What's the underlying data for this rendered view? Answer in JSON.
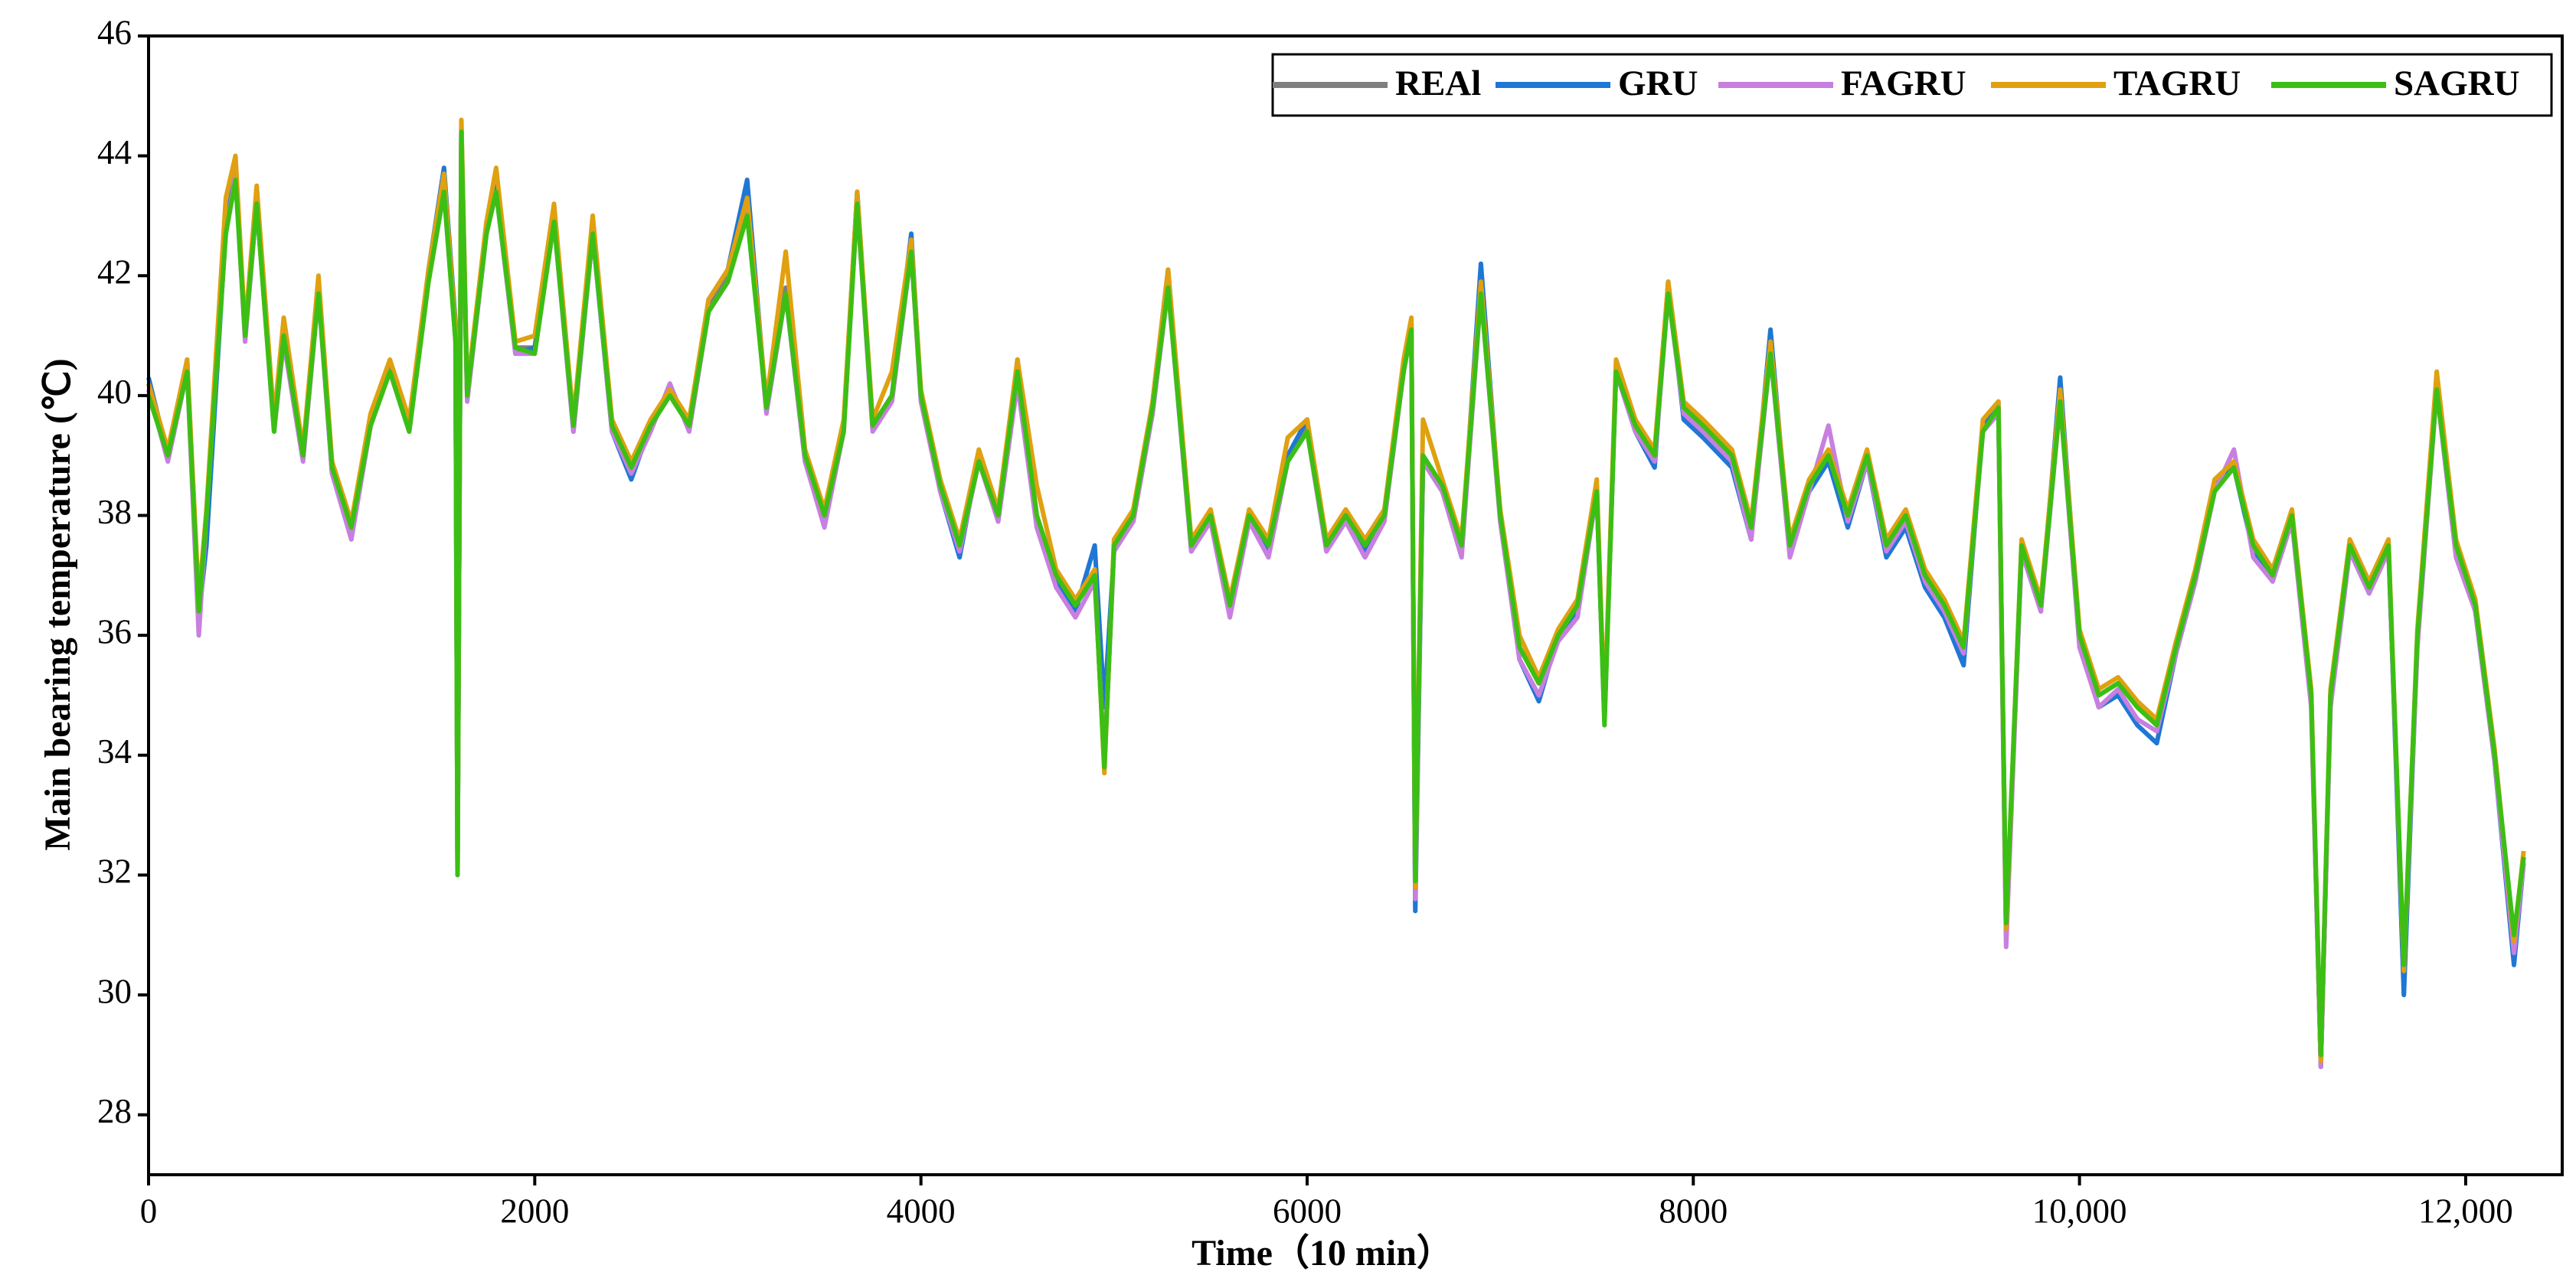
{
  "chart_data": {
    "type": "line",
    "xlabel": "Time（10 min）",
    "ylabel": "Main bearing temperature (℃)",
    "xlim": [
      0,
      12500
    ],
    "ylim": [
      27,
      46
    ],
    "xticks": [
      0,
      2000,
      4000,
      6000,
      8000,
      {
        "value": 10000,
        "label": "10,000"
      },
      {
        "value": 12000,
        "label": "12,000"
      }
    ],
    "yticks": [
      28,
      30,
      32,
      34,
      36,
      38,
      40,
      42,
      44,
      46
    ],
    "legend": "upper right",
    "x": [
      0,
      100,
      200,
      260,
      300,
      400,
      450,
      500,
      560,
      650,
      700,
      800,
      880,
      950,
      1050,
      1150,
      1250,
      1350,
      1450,
      1530,
      1590,
      1600,
      1620,
      1650,
      1750,
      1800,
      1900,
      2000,
      2100,
      2200,
      2300,
      2400,
      2500,
      2600,
      2700,
      2800,
      2900,
      3000,
      3100,
      3200,
      3300,
      3400,
      3500,
      3600,
      3670,
      3750,
      3850,
      3950,
      4000,
      4100,
      4200,
      4300,
      4400,
      4500,
      4600,
      4700,
      4800,
      4900,
      4950,
      5000,
      5100,
      5200,
      5280,
      5400,
      5500,
      5600,
      5700,
      5800,
      5900,
      6000,
      6100,
      6200,
      6300,
      6400,
      6500,
      6540,
      6560,
      6600,
      6700,
      6800,
      6900,
      7000,
      7100,
      7200,
      7300,
      7400,
      7500,
      7540,
      7600,
      7700,
      7800,
      7870,
      7950,
      8050,
      8200,
      8300,
      8400,
      8500,
      8600,
      8700,
      8800,
      8900,
      9000,
      9100,
      9200,
      9300,
      9400,
      9500,
      9580,
      9620,
      9700,
      9800,
      9900,
      10000,
      10100,
      10200,
      10300,
      10400,
      10500,
      10600,
      10700,
      10800,
      10900,
      11000,
      11100,
      11200,
      11250,
      11300,
      11400,
      11500,
      11600,
      11680,
      11750,
      11850,
      11950,
      12050,
      12150,
      12250,
      12300
    ],
    "series": [
      {
        "name": "REAl",
        "color": "#7f7f7f",
        "values": [
          40.2,
          39,
          40.5,
          36.5,
          38,
          42.8,
          43.8,
          41,
          43.3,
          39.5,
          41,
          39,
          41.8,
          38.8,
          37.8,
          39.6,
          40.5,
          39.5,
          42,
          43.5,
          41,
          32,
          44.5,
          40,
          42.8,
          43.5,
          40.8,
          40.8,
          43,
          39.5,
          42.8,
          39.5,
          38.8,
          39.5,
          40,
          39.5,
          41.5,
          42,
          43.2,
          39.8,
          41.8,
          39,
          38,
          39.5,
          43.3,
          39.5,
          40,
          42.5,
          40,
          38.5,
          37.5,
          39,
          38,
          40.5,
          38,
          37,
          36.5,
          37,
          33.8,
          37.5,
          38,
          39.8,
          42,
          37.5,
          38,
          36.5,
          38,
          37.5,
          39,
          39.5,
          37.5,
          38,
          37.5,
          38,
          40.5,
          41.2,
          31.7,
          39,
          38.5,
          37.5,
          41.8,
          38,
          35.8,
          35.2,
          36,
          36.5,
          38.5,
          34.6,
          40.5,
          39.5,
          39,
          41.8,
          39.8,
          39.5,
          39,
          37.8,
          40.8,
          37.5,
          38.5,
          39,
          38,
          39,
          37.5,
          38,
          37,
          36.5,
          35.8,
          39.5,
          39.8,
          31,
          37.5,
          36.5,
          40,
          36,
          35,
          35.2,
          34.8,
          34.5,
          35.8,
          37,
          38.5,
          38.8,
          37.5,
          37,
          38,
          35,
          28.8,
          35,
          37.5,
          36.8,
          37.5,
          30.3,
          36,
          40.2,
          37.5,
          36.5,
          34,
          30.8,
          32.3
        ]
      },
      {
        "name": "GRU",
        "color": "#1f77d4",
        "values": [
          40.3,
          39,
          40.6,
          36.3,
          37.5,
          42.8,
          43.7,
          41,
          43.2,
          39.5,
          41,
          39,
          41.8,
          38.7,
          37.7,
          39.6,
          40.4,
          39.5,
          42.1,
          43.8,
          41.2,
          32.2,
          44.4,
          40,
          42.9,
          43.5,
          40.7,
          40.8,
          43,
          39.4,
          42.7,
          39.4,
          38.6,
          39.5,
          40.1,
          39.5,
          41.6,
          42.1,
          43.6,
          39.8,
          41.7,
          38.9,
          37.9,
          39.5,
          43.4,
          39.5,
          40,
          42.7,
          40,
          38.4,
          37.3,
          39,
          37.9,
          40.6,
          37.9,
          36.9,
          36.4,
          37.5,
          34.8,
          37.4,
          38,
          39.9,
          42.1,
          37.4,
          38,
          36.4,
          38,
          37.4,
          39,
          39.6,
          37.4,
          38,
          37.4,
          38,
          40.4,
          41.2,
          31.4,
          38.9,
          38.4,
          37.4,
          42.2,
          38,
          35.6,
          34.9,
          36,
          36.4,
          38.4,
          34.6,
          40.4,
          39.4,
          38.8,
          41.9,
          39.6,
          39.3,
          38.8,
          37.6,
          41.1,
          37.4,
          38.4,
          38.9,
          37.8,
          38.9,
          37.3,
          37.8,
          36.8,
          36.3,
          35.5,
          39.5,
          39.9,
          31,
          37.4,
          36.4,
          40.3,
          35.9,
          34.8,
          35,
          34.5,
          34.2,
          35.7,
          36.9,
          38.5,
          38.8,
          37.4,
          36.9,
          38,
          34.9,
          28.8,
          34.9,
          37.5,
          36.7,
          37.5,
          30,
          35.9,
          40.3,
          37.4,
          36.4,
          33.9,
          30.5,
          32.2
        ]
      },
      {
        "name": "FAGRU",
        "color": "#c77fe0",
        "values": [
          40.1,
          38.9,
          40.4,
          36,
          38,
          42.7,
          43.7,
          40.9,
          43.2,
          39.4,
          40.9,
          38.9,
          41.7,
          38.7,
          37.6,
          39.5,
          40.4,
          39.4,
          41.9,
          43.4,
          40.9,
          32.1,
          44.4,
          39.9,
          42.7,
          43.4,
          40.7,
          40.7,
          42.9,
          39.4,
          42.7,
          39.4,
          38.7,
          39.4,
          40.2,
          39.4,
          41.4,
          41.9,
          43.3,
          39.7,
          41.7,
          38.9,
          37.8,
          39.4,
          43.2,
          39.4,
          39.9,
          42.4,
          39.9,
          38.4,
          37.4,
          38.9,
          37.9,
          40.2,
          37.8,
          36.8,
          36.3,
          36.9,
          33.9,
          37.4,
          37.9,
          39.7,
          41.8,
          37.4,
          37.9,
          36.3,
          37.9,
          37.3,
          38.9,
          39.4,
          37.4,
          37.9,
          37.3,
          37.9,
          40.4,
          41.1,
          31.6,
          38.9,
          38.4,
          37.3,
          41.7,
          37.9,
          35.6,
          35,
          35.9,
          36.3,
          38.4,
          34.6,
          40.4,
          39.4,
          38.9,
          41.7,
          39.7,
          39.4,
          38.9,
          37.6,
          40.7,
          37.3,
          38.4,
          39.5,
          37.9,
          38.9,
          37.4,
          37.9,
          36.9,
          36.4,
          35.7,
          39.4,
          39.7,
          30.8,
          37.4,
          36.4,
          39.9,
          35.8,
          34.8,
          35.1,
          34.6,
          34.4,
          35.7,
          36.9,
          38.4,
          39.1,
          37.3,
          36.9,
          37.9,
          34.8,
          28.8,
          34.8,
          37.4,
          36.7,
          37.4,
          30.4,
          35.8,
          40.1,
          37.3,
          36.4,
          33.9,
          30.7,
          32.2
        ]
      },
      {
        "name": "TAGRU",
        "color": "#e0a010",
        "values": [
          40.2,
          39.1,
          40.6,
          36.6,
          38.1,
          43.3,
          44,
          41.1,
          43.5,
          39.6,
          41.3,
          39.1,
          42,
          38.9,
          37.9,
          39.7,
          40.6,
          39.6,
          42.1,
          43.7,
          41.1,
          32.1,
          44.6,
          40.1,
          42.9,
          43.8,
          40.9,
          41,
          43.2,
          39.6,
          43,
          39.6,
          38.9,
          39.6,
          40.1,
          39.6,
          41.6,
          42.1,
          43.3,
          39.9,
          42.4,
          39.1,
          38.1,
          39.6,
          43.4,
          39.6,
          40.4,
          42.6,
          40.1,
          38.6,
          37.6,
          39.1,
          38.1,
          40.6,
          38.5,
          37.1,
          36.6,
          37.1,
          33.7,
          37.6,
          38.1,
          39.9,
          42.1,
          37.6,
          38.1,
          36.6,
          38.1,
          37.6,
          39.3,
          39.6,
          37.6,
          38.1,
          37.6,
          38.1,
          40.6,
          41.3,
          31.8,
          39.6,
          38.6,
          37.6,
          41.9,
          38.1,
          36,
          35.3,
          36.1,
          36.6,
          38.6,
          34.7,
          40.6,
          39.6,
          39.1,
          41.9,
          39.9,
          39.6,
          39.1,
          37.9,
          40.9,
          37.6,
          38.6,
          39.1,
          38.1,
          39.1,
          37.6,
          38.1,
          37.1,
          36.6,
          35.9,
          39.6,
          39.9,
          31.1,
          37.6,
          36.6,
          40.1,
          36.1,
          35.1,
          35.3,
          34.9,
          34.6,
          35.9,
          37.1,
          38.6,
          38.9,
          37.6,
          37.1,
          38.1,
          35.1,
          28.9,
          35.1,
          37.6,
          36.9,
          37.6,
          30.4,
          36.1,
          40.4,
          37.6,
          36.6,
          34.1,
          30.9,
          32.4
        ]
      },
      {
        "name": "SAGRU",
        "color": "#3cbf14",
        "values": [
          40,
          39,
          40.4,
          36.4,
          38,
          42.7,
          43.6,
          41,
          43.2,
          39.4,
          41,
          39,
          41.7,
          38.8,
          37.8,
          39.5,
          40.4,
          39.4,
          41.9,
          43.4,
          40.9,
          32,
          44.4,
          40,
          42.7,
          43.4,
          40.8,
          40.7,
          42.9,
          39.5,
          42.7,
          39.5,
          38.8,
          39.5,
          40,
          39.5,
          41.4,
          41.9,
          43,
          39.8,
          41.7,
          39,
          38,
          39.4,
          43.2,
          39.5,
          40,
          42.4,
          40,
          38.5,
          37.5,
          38.9,
          38,
          40.4,
          38,
          37,
          36.5,
          37,
          33.8,
          37.5,
          38,
          39.8,
          41.8,
          37.5,
          38,
          36.5,
          38,
          37.5,
          38.9,
          39.4,
          37.5,
          38,
          37.5,
          38,
          40.4,
          41.1,
          31.9,
          39,
          38.5,
          37.5,
          41.7,
          38,
          35.8,
          35.2,
          36,
          36.5,
          38.4,
          34.5,
          40.4,
          39.5,
          39,
          41.7,
          39.8,
          39.5,
          39,
          37.8,
          40.7,
          37.5,
          38.5,
          39,
          38,
          39,
          37.5,
          38,
          37,
          36.5,
          35.8,
          39.4,
          39.8,
          31.2,
          37.5,
          36.5,
          39.9,
          36,
          35,
          35.2,
          34.8,
          34.5,
          35.8,
          37,
          38.4,
          38.8,
          37.5,
          37,
          38,
          35,
          29,
          35,
          37.5,
          36.8,
          37.5,
          30.5,
          36,
          40.1,
          37.5,
          36.5,
          34,
          31,
          32.3
        ]
      }
    ]
  }
}
